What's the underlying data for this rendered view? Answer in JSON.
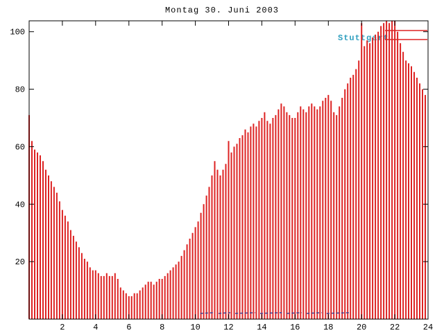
{
  "title": "Montag 30. Juni 2003",
  "legend": {
    "label": "Stuttgart",
    "label_color": "#2f9fbf",
    "sample_color": "#dd2222"
  },
  "chart_data": {
    "type": "bar",
    "title": "Montag 30. Juni 2003",
    "series_name": "Stuttgart",
    "xlabel": "",
    "ylabel": "",
    "xlim": [
      0,
      24
    ],
    "ylim": [
      0,
      103.8
    ],
    "x_ticks": [
      2,
      4,
      6,
      8,
      10,
      12,
      14,
      16,
      18,
      20,
      22,
      24
    ],
    "y_ticks": [
      20,
      40,
      60,
      80,
      100
    ],
    "grid": false,
    "legend_position": "top-right",
    "bar_color": "#dd2222",
    "interval_minutes": 10,
    "x_start_hour": 0,
    "values": [
      71,
      62,
      59,
      58,
      57,
      55,
      52,
      50,
      48,
      46,
      44,
      41,
      38,
      36,
      34,
      31,
      29,
      27,
      25,
      23,
      21,
      20,
      18,
      17,
      17,
      16,
      15,
      15,
      16,
      15,
      15,
      16,
      14,
      11,
      10,
      9,
      8,
      8,
      9,
      9,
      10,
      11,
      12,
      13,
      13,
      12,
      13,
      14,
      14,
      15,
      16,
      17,
      18,
      19,
      20,
      22,
      24,
      26,
      28,
      30,
      32,
      34,
      37,
      40,
      43,
      46,
      50,
      55,
      52,
      50,
      52,
      54,
      62,
      58,
      60,
      61,
      63,
      64,
      66,
      65,
      67,
      68,
      67,
      69,
      70,
      72,
      69,
      68,
      70,
      71,
      73,
      75,
      74,
      72,
      71,
      70,
      70,
      72,
      74,
      73,
      72,
      74,
      75,
      74,
      73,
      74,
      76,
      77,
      78,
      76,
      72,
      71,
      74,
      77,
      80,
      82,
      84,
      85,
      87,
      90,
      103,
      95,
      97,
      96,
      98,
      99,
      100,
      102,
      103,
      104,
      103,
      104,
      104,
      100,
      96,
      93,
      90,
      89,
      88,
      86,
      84,
      82,
      80,
      78
    ],
    "low_marks": {
      "value": 2,
      "color": "#404090",
      "segments": [
        [
          10.3,
          11.1
        ],
        [
          11.4,
          12.1
        ],
        [
          12.4,
          13.6
        ],
        [
          13.9,
          15.2
        ],
        [
          15.5,
          16.4
        ],
        [
          16.7,
          17.6
        ],
        [
          17.9,
          19.3
        ]
      ]
    }
  }
}
